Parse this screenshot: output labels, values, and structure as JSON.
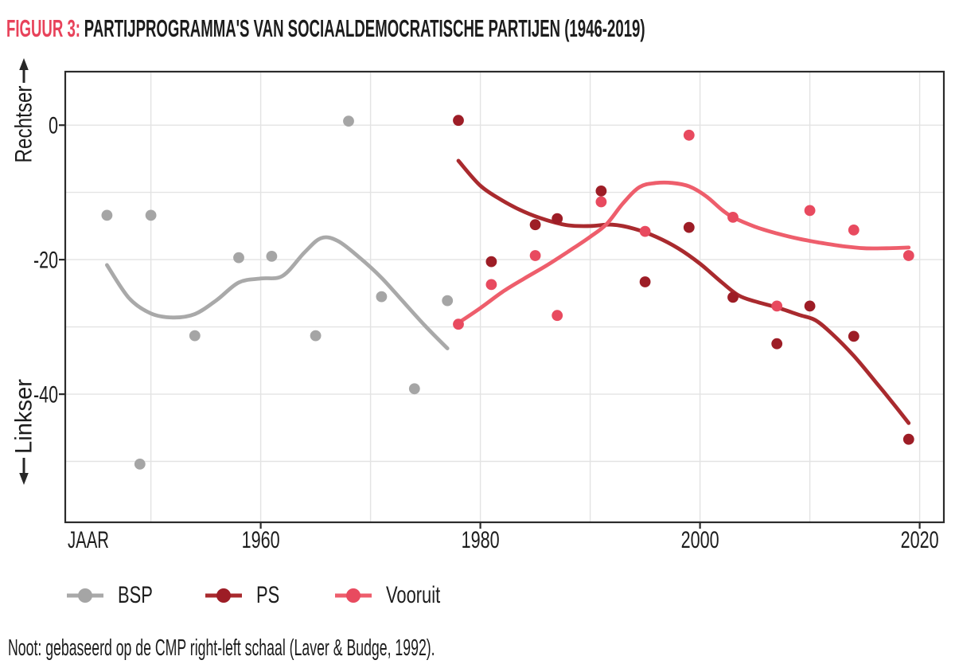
{
  "title": {
    "prefix": "FIGUUR 3:",
    "main": "PARTIJPROGRAMMA'S VAN SOCIAALDEMOCRATISCHE PARTIJEN (1946-2019)",
    "accent_color": "#e8425a"
  },
  "note": "Noot: gebaseerd op de CMP right-left schaal (Laver & Budge, 1992).",
  "axes": {
    "x_label": "JAAR",
    "y_top_label": "Rechtser",
    "y_bottom_label": "Linkser",
    "text_color": "#1c1c1c",
    "grid_color": "#e3e3e3",
    "frame_color": "#2b2b2b"
  },
  "chart_data": {
    "type": "scatter",
    "title": "FIGUUR 3: PARTIJPROGRAMMA'S VAN SOCIAALDEMOCRATISCHE PARTIJEN (1946-2019)",
    "xlabel": "JAAR",
    "ylabel_top": "Rechtser",
    "ylabel_bottom": "Linkser",
    "note": "Noot: gebaseerd op de CMP right-left schaal (Laver & Budge, 1992).",
    "xlim": [
      1942.2,
      2022.2
    ],
    "ylim": [
      -59.05,
      7.95
    ],
    "x_gridlines": [
      1950,
      1960,
      1970,
      1980,
      1990,
      2000,
      2010,
      2020
    ],
    "y_gridlines": [
      0,
      -10,
      -20,
      -30,
      -40,
      -50
    ],
    "x_ticks": [
      1960,
      1980,
      2000,
      2020
    ],
    "y_ticks": [
      0,
      -20,
      -40
    ],
    "grid": true,
    "legend_position": "bottom-left",
    "series": [
      {
        "name": "BSP",
        "point_color": "#a5a5a5",
        "line_color": "#a9a9a9",
        "points": [
          [
            1946,
            -13.4
          ],
          [
            1949,
            -50.4
          ],
          [
            1950,
            -13.4
          ],
          [
            1954,
            -31.3
          ],
          [
            1958,
            -19.7
          ],
          [
            1961,
            -19.5
          ],
          [
            1965,
            -31.3
          ],
          [
            1968,
            0.6
          ],
          [
            1971,
            -25.5
          ],
          [
            1974,
            -39.2
          ],
          [
            1977,
            -26.1
          ]
        ],
        "trend": [
          [
            1946,
            -20.8
          ],
          [
            1948,
            -25.7
          ],
          [
            1950,
            -28.0
          ],
          [
            1952,
            -28.6
          ],
          [
            1954,
            -28.1
          ],
          [
            1956,
            -26.0
          ],
          [
            1958,
            -23.4
          ],
          [
            1960,
            -22.8
          ],
          [
            1962,
            -22.4
          ],
          [
            1964,
            -18.9
          ],
          [
            1965.5,
            -16.8
          ],
          [
            1967,
            -17.2
          ],
          [
            1969,
            -19.7
          ],
          [
            1971,
            -22.7
          ],
          [
            1973,
            -26.3
          ],
          [
            1975,
            -29.9
          ],
          [
            1977,
            -33.2
          ]
        ]
      },
      {
        "name": "PS",
        "point_color": "#9d1d26",
        "line_color": "#a92a2e",
        "points": [
          [
            1978,
            0.7
          ],
          [
            1981,
            -20.3
          ],
          [
            1985,
            -14.8
          ],
          [
            1987,
            -13.9
          ],
          [
            1991,
            -9.8
          ],
          [
            1995,
            -23.3
          ],
          [
            1999,
            -15.2
          ],
          [
            2003,
            -25.6
          ],
          [
            2007,
            -32.5
          ],
          [
            2010,
            -26.9
          ],
          [
            2014,
            -31.4
          ],
          [
            2019,
            -46.7
          ]
        ],
        "trend": [
          [
            1978,
            -5.3
          ],
          [
            1980,
            -9.0
          ],
          [
            1982,
            -11.2
          ],
          [
            1984,
            -12.9
          ],
          [
            1986,
            -14.1
          ],
          [
            1988,
            -14.9
          ],
          [
            1990,
            -15.0
          ],
          [
            1992,
            -14.8
          ],
          [
            1994,
            -15.4
          ],
          [
            1996,
            -16.6
          ],
          [
            1998,
            -18.3
          ],
          [
            2000,
            -20.6
          ],
          [
            2002,
            -23.4
          ],
          [
            2003.5,
            -25.3
          ],
          [
            2005,
            -26.2
          ],
          [
            2007,
            -27.1
          ],
          [
            2009,
            -28.2
          ],
          [
            2010.5,
            -29.0
          ],
          [
            2012,
            -31.0
          ],
          [
            2014,
            -34.3
          ],
          [
            2016,
            -38.2
          ],
          [
            2017.5,
            -41.2
          ],
          [
            2019,
            -44.3
          ]
        ]
      },
      {
        "name": "Vooruit",
        "point_color": "#e84a5f",
        "line_color": "#ee5e6c",
        "points": [
          [
            1978,
            -29.6
          ],
          [
            1981,
            -23.7
          ],
          [
            1985,
            -19.4
          ],
          [
            1987,
            -28.3
          ],
          [
            1991,
            -11.4
          ],
          [
            1995,
            -15.8
          ],
          [
            1999,
            -1.5
          ],
          [
            2003,
            -13.7
          ],
          [
            2007,
            -26.9
          ],
          [
            2010,
            -12.7
          ],
          [
            2014,
            -15.6
          ],
          [
            2019,
            -19.4
          ]
        ],
        "trend": [
          [
            1978,
            -29.4
          ],
          [
            1980,
            -27.2
          ],
          [
            1982,
            -24.8
          ],
          [
            1984,
            -22.8
          ],
          [
            1986,
            -20.9
          ],
          [
            1988,
            -18.8
          ],
          [
            1990,
            -16.6
          ],
          [
            1991.5,
            -14.7
          ],
          [
            1993,
            -11.6
          ],
          [
            1994.5,
            -9.2
          ],
          [
            1996,
            -8.6
          ],
          [
            1997.5,
            -8.6
          ],
          [
            1999,
            -9.1
          ],
          [
            2000.5,
            -10.5
          ],
          [
            2002,
            -12.6
          ],
          [
            2003,
            -13.7
          ],
          [
            2005,
            -15.1
          ],
          [
            2007,
            -16.1
          ],
          [
            2009,
            -16.9
          ],
          [
            2011,
            -17.5
          ],
          [
            2013,
            -18.0
          ],
          [
            2015,
            -18.3
          ],
          [
            2017,
            -18.3
          ],
          [
            2019,
            -18.2
          ]
        ]
      }
    ]
  }
}
